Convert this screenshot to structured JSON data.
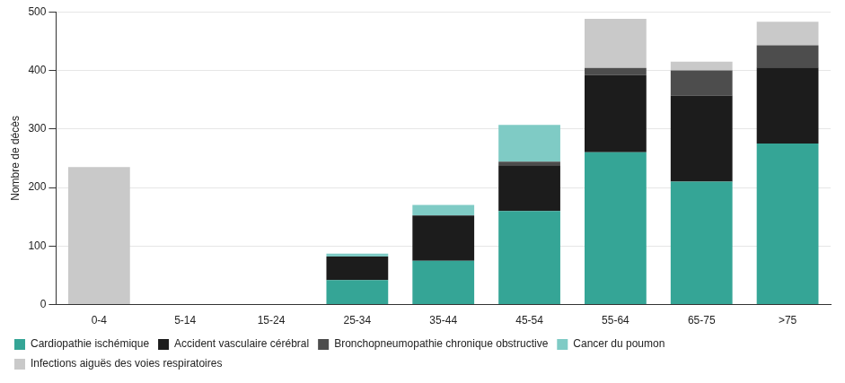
{
  "chart_data": {
    "type": "bar",
    "stacked": true,
    "y_label": "Nombre de décès",
    "categories": [
      "0-4",
      "5-14",
      "15-24",
      "25-34",
      "35-44",
      "45-54",
      "55-64",
      "65-75",
      ">75"
    ],
    "series": [
      {
        "name": "Cardiopathie ischémique",
        "color": "#35a596",
        "values": [
          0,
          0,
          0,
          42,
          75,
          160,
          260,
          210,
          275
        ]
      },
      {
        "name": "Accident vasculaire cérébral",
        "color": "#1c1c1c",
        "values": [
          0,
          0,
          0,
          40,
          77,
          78,
          132,
          147,
          130
        ]
      },
      {
        "name": "Bronchopneumopathie chronique obstructive",
        "color": "#4d4d4d",
        "values": [
          0,
          0,
          0,
          0,
          0,
          6,
          12,
          43,
          38
        ]
      },
      {
        "name": "Cancer du poumon",
        "color": "#7fcbc5",
        "values": [
          0,
          0,
          0,
          5,
          18,
          63,
          0,
          0,
          0
        ]
      },
      {
        "name": "Infections aiguës des voies respiratoires",
        "color": "#c9c9c9",
        "values": [
          235,
          0,
          0,
          0,
          0,
          0,
          84,
          15,
          40
        ]
      }
    ],
    "ylim": [
      0,
      500
    ],
    "yticks": [
      0,
      100,
      200,
      300,
      400,
      500
    ],
    "grid": true,
    "legend": "bottom"
  }
}
